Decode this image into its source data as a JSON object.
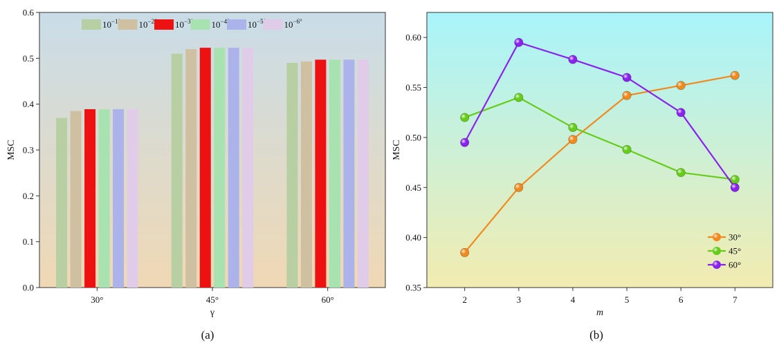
{
  "panel_a": {
    "caption": "(a)",
    "legend_base": "10",
    "legend_exps": [
      "−1",
      "−2",
      "−3",
      "−4",
      "−5",
      "−6"
    ],
    "legend_suffix": "°"
  },
  "panel_b": {
    "caption": "(b)"
  },
  "chart_data": [
    {
      "type": "bar",
      "title": "",
      "xlabel": "γ",
      "ylabel": "MSC",
      "ylim": [
        0,
        0.6
      ],
      "yticks": [
        "0.0",
        "0.1",
        "0.2",
        "0.3",
        "0.4",
        "0.5",
        "0.6"
      ],
      "categories": [
        "30°",
        "45°",
        "60°"
      ],
      "series": [
        {
          "name": "10^-1°",
          "color": "#b7cfa3",
          "values": [
            0.37,
            0.51,
            0.49
          ]
        },
        {
          "name": "10^-2°",
          "color": "#cfc0a2",
          "values": [
            0.385,
            0.52,
            0.493
          ]
        },
        {
          "name": "10^-3°",
          "color": "#ee1111",
          "values": [
            0.389,
            0.523,
            0.497
          ]
        },
        {
          "name": "10^-4°",
          "color": "#a8e2b0",
          "values": [
            0.389,
            0.523,
            0.497
          ]
        },
        {
          "name": "10^-5°",
          "color": "#abb3ea",
          "values": [
            0.389,
            0.523,
            0.497
          ]
        },
        {
          "name": "10^-6°",
          "color": "#e0cbe8",
          "values": [
            0.389,
            0.523,
            0.497
          ]
        }
      ],
      "background_gradient": [
        "#c9dde8",
        "#f0d8b4"
      ],
      "legend_position": "top",
      "grid": false
    },
    {
      "type": "line",
      "title": "",
      "xlabel": "m",
      "ylabel": "MSC",
      "x": [
        2,
        3,
        4,
        5,
        6,
        7
      ],
      "xticks": [
        "2",
        "3",
        "4",
        "5",
        "6",
        "7"
      ],
      "ylim": [
        0.35,
        0.625
      ],
      "yticks": [
        "0.35",
        "0.40",
        "0.45",
        "0.50",
        "0.55",
        "0.60"
      ],
      "series": [
        {
          "name": "30°",
          "color": "#f08a1e",
          "values": [
            0.385,
            0.45,
            0.498,
            0.542,
            0.552,
            0.562
          ]
        },
        {
          "name": "45°",
          "color": "#66cc1a",
          "values": [
            0.52,
            0.54,
            0.51,
            0.488,
            0.465,
            0.458
          ]
        },
        {
          "name": "60°",
          "color": "#8a22ee",
          "values": [
            0.495,
            0.595,
            0.578,
            0.56,
            0.525,
            0.45
          ]
        }
      ],
      "background_gradient": [
        "#a8f4fb",
        "#f2ecb0"
      ],
      "legend_position": "bottom-right",
      "grid": false
    }
  ]
}
